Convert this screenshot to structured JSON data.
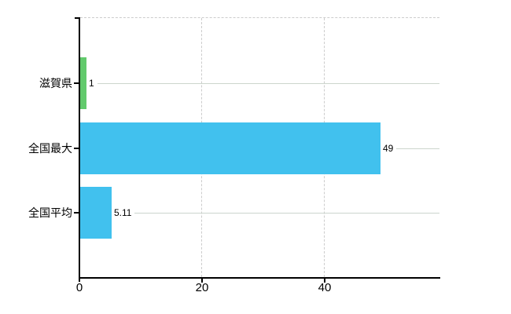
{
  "chart_data": {
    "type": "bar",
    "orientation": "horizontal",
    "categories": [
      "滋賀県",
      "全国最大",
      "全国平均"
    ],
    "values": [
      1,
      49,
      5.11
    ],
    "value_labels": [
      "1",
      "49",
      "5.11"
    ],
    "bar_colors": [
      "#62ca6c",
      "#41c1ee",
      "#41c1ee"
    ],
    "x_tick_labels": [
      "0",
      "20",
      "40"
    ],
    "x_tick_values": [
      0,
      20,
      40
    ],
    "xlim": [
      0,
      58.7
    ],
    "grid": {
      "vertical": "dashed",
      "color": "#cccccc"
    },
    "legend_position": "none",
    "axis_color": "#000000",
    "leader_line_color": "#ccd5cd",
    "background_color": "#ffffff"
  }
}
